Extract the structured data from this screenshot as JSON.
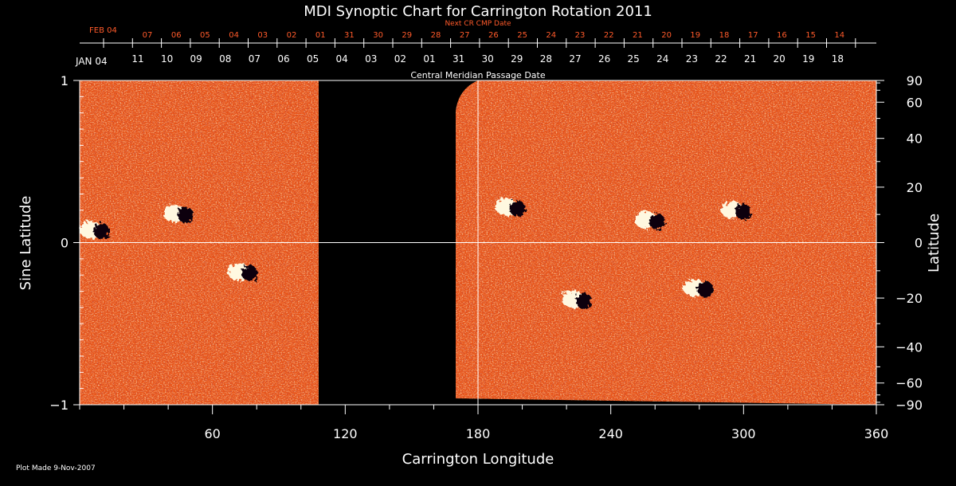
{
  "chart_data": {
    "type": "heatmap",
    "title": "MDI Synoptic Chart for Carrington Rotation 2011",
    "xlabel": "Carrington Longitude",
    "ylabel_left": "Sine Latitude",
    "ylabel_right": "Latitude",
    "xlim": [
      0,
      360
    ],
    "ylim": [
      -1,
      1
    ],
    "x_ticks": [
      60,
      120,
      180,
      240,
      300,
      360
    ],
    "y_ticks_left": [
      "1",
      "0",
      "−1"
    ],
    "y_ticks_right": [
      "90",
      "60",
      "40",
      "20",
      "0",
      "−20",
      "−40",
      "−60",
      "−90"
    ],
    "right_tick_lat_values": [
      90,
      60,
      40,
      20,
      0,
      -20,
      -40,
      -60,
      -90
    ],
    "reference_lines": {
      "longitude": 180,
      "sine_latitude": 0
    },
    "data_gap_longitude": [
      108,
      170
    ],
    "active_regions": [
      {
        "lon": 7,
        "sinlat": 0.08,
        "polarity": "mixed"
      },
      {
        "lon": 45,
        "sinlat": 0.18,
        "polarity": "mixed"
      },
      {
        "lon": 74,
        "sinlat": -0.18,
        "polarity": "mixed"
      },
      {
        "lon": 195,
        "sinlat": 0.22,
        "polarity": "mixed"
      },
      {
        "lon": 258,
        "sinlat": 0.14,
        "polarity": "mixed"
      },
      {
        "lon": 297,
        "sinlat": 0.2,
        "polarity": "mixed"
      },
      {
        "lon": 225,
        "sinlat": -0.35,
        "polarity": "mixed"
      },
      {
        "lon": 280,
        "sinlat": -0.28,
        "polarity": "mixed"
      }
    ],
    "date_axis_bottom": {
      "first_label": "JAN 04",
      "title": "Central Meridian Passage Date",
      "labels": [
        "11",
        "10",
        "09",
        "08",
        "07",
        "06",
        "05",
        "04",
        "03",
        "02",
        "01",
        "31",
        "30",
        "29",
        "28",
        "27",
        "26",
        "25",
        "24",
        "23",
        "22",
        "21",
        "20",
        "19",
        "18"
      ]
    },
    "date_axis_top": {
      "first_label": "FEB 04",
      "title": "Next CR CMP Date",
      "labels": [
        "07",
        "06",
        "05",
        "04",
        "03",
        "02",
        "01",
        "31",
        "30",
        "29",
        "28",
        "27",
        "26",
        "25",
        "24",
        "23",
        "22",
        "21",
        "20",
        "19",
        "18",
        "17",
        "16",
        "15",
        "14"
      ]
    }
  },
  "footer": {
    "plot_made": "Plot Made  9-Nov-2007"
  },
  "colors": {
    "background": "#000000",
    "orange": "#e8551a",
    "axis": "#ffffff",
    "red_text": "#ff5a2a"
  }
}
